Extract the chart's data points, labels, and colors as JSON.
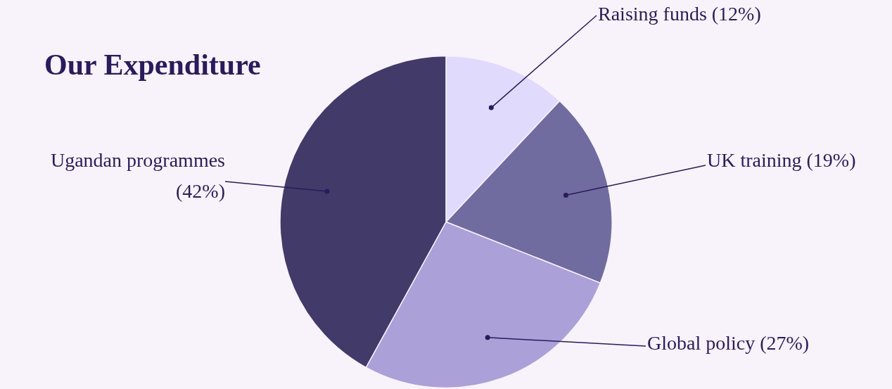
{
  "chart_data": {
    "type": "pie",
    "title": "Our Expenditure",
    "categories": [
      "Raising funds (12%)",
      "UK training (19%)",
      "Global policy (27%)",
      "Ugandan programmes (42%)"
    ],
    "values": [
      12,
      19,
      27,
      42
    ],
    "colors": [
      "#e0dbfd",
      "#716c9f",
      "#aba0d8",
      "#423a69"
    ],
    "legend": false
  }
}
